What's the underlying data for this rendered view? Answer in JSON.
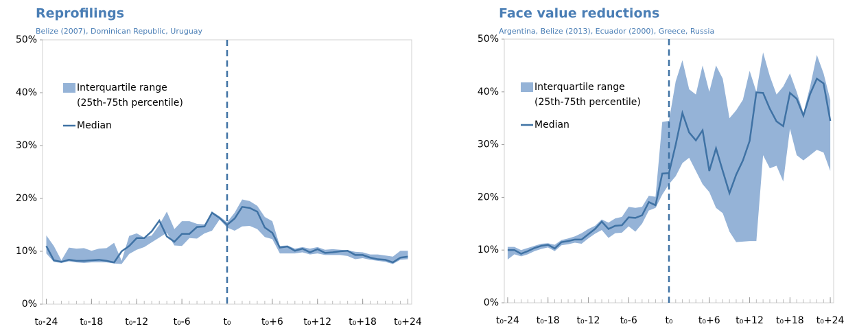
{
  "chart_data": [
    {
      "type": "line",
      "title": "Reprofilings",
      "subtitle": "Belize (2007),  Dominican Republic, Uruguay",
      "x": [
        -24,
        -23,
        -22,
        -21,
        -20,
        -19,
        -18,
        -17,
        -16,
        -15,
        -14,
        -13,
        -12,
        -11,
        -10,
        -9,
        -8,
        -7,
        -6,
        -5,
        -4,
        -3,
        -2,
        -1,
        0,
        1,
        2,
        3,
        4,
        5,
        6,
        7,
        8,
        9,
        10,
        11,
        12,
        13,
        14,
        15,
        16,
        17,
        18,
        19,
        20,
        21,
        22,
        23,
        24
      ],
      "xlim": [
        -24.5,
        24.5
      ],
      "xticks": [
        {
          "value": -24,
          "label": "t₀-24"
        },
        {
          "value": -18,
          "label": "t₀-18"
        },
        {
          "value": -12,
          "label": "t₀-12"
        },
        {
          "value": -6,
          "label": "t₀-6"
        },
        {
          "value": 0,
          "label": "t₀"
        },
        {
          "value": 6,
          "label": "t₀+6"
        },
        {
          "value": 12,
          "label": "t₀+12"
        },
        {
          "value": 18,
          "label": "t₀+18"
        },
        {
          "value": 24,
          "label": "t₀+24"
        }
      ],
      "ylim": [
        0,
        50
      ],
      "yticks": [
        {
          "value": 0,
          "label": "0%"
        },
        {
          "value": 10,
          "label": "10%"
        },
        {
          "value": 20,
          "label": "20%"
        },
        {
          "value": 30,
          "label": "30%"
        },
        {
          "value": 40,
          "label": "40%"
        },
        {
          "value": 50,
          "label": "50%"
        }
      ],
      "marker_x": 0,
      "series": [
        {
          "name": "Interquartile range",
          "note": "(25th-75th percentile)",
          "color": "#95b3d7",
          "upper": [
            13,
            11,
            8.3,
            10.7,
            10.5,
            10.6,
            10.1,
            10.5,
            10.6,
            11.6,
            8.2,
            12.9,
            13.4,
            12.6,
            13,
            15,
            17.5,
            14.2,
            15.7,
            15.7,
            15.2,
            15.1,
            17.5,
            16.6,
            15.5,
            17.3,
            19.8,
            19.5,
            18.6,
            16.5,
            15.7,
            11,
            11.1,
            10.5,
            10.8,
            10.5,
            10.8,
            10.3,
            10.4,
            10.3,
            10.2,
            9.9,
            9.8,
            9.4,
            9.4,
            9.2,
            9,
            10.1,
            10.1
          ],
          "lower": [
            9.6,
            8,
            7.8,
            8.1,
            7.9,
            7.8,
            7.9,
            7.9,
            7.9,
            7.7,
            7.6,
            9.5,
            10.3,
            10.8,
            11.7,
            12.6,
            13.5,
            11.1,
            11,
            12.5,
            12.4,
            13.4,
            13.9,
            16,
            14.5,
            13.9,
            14.7,
            14.8,
            14.2,
            12.7,
            12.3,
            9.6,
            9.6,
            9.6,
            9.8,
            9.4,
            9.6,
            9.3,
            9.3,
            9.3,
            9.1,
            8.5,
            8.7,
            8.4,
            8.2,
            8,
            7.6,
            8.4,
            8.5
          ]
        },
        {
          "name": "Median",
          "color": "#3f72a4",
          "values": [
            11,
            8.3,
            8,
            8.4,
            8.2,
            8.2,
            8.3,
            8.4,
            8.2,
            7.9,
            10,
            11,
            12.5,
            12.5,
            13.8,
            15.8,
            12.8,
            11.8,
            13.3,
            13.3,
            14.6,
            14.7,
            17.3,
            16.3,
            15,
            16.2,
            18.4,
            18.2,
            17.5,
            14.5,
            13.5,
            10.7,
            10.9,
            10.1,
            10.5,
            9.8,
            10.4,
            9.7,
            9.8,
            10,
            10.1,
            9.3,
            9.3,
            8.8,
            8.5,
            8.4,
            7.9,
            8.8,
            9
          ]
        }
      ]
    },
    {
      "type": "line",
      "title": "Face value reductions",
      "subtitle": "Argentina, Belize (2013), Ecuador (2000), Greece, Russia",
      "x": [
        -24,
        -23,
        -22,
        -21,
        -20,
        -19,
        -18,
        -17,
        -16,
        -15,
        -14,
        -13,
        -12,
        -11,
        -10,
        -9,
        -8,
        -7,
        -6,
        -5,
        -4,
        -3,
        -2,
        -1,
        0,
        1,
        2,
        3,
        4,
        5,
        6,
        7,
        8,
        9,
        10,
        11,
        12,
        13,
        14,
        15,
        16,
        17,
        18,
        19,
        20,
        21,
        22,
        23,
        24
      ],
      "xlim": [
        -24.5,
        24.5
      ],
      "xticks": [
        {
          "value": -24,
          "label": "t₀-24"
        },
        {
          "value": -18,
          "label": "t₀-18"
        },
        {
          "value": -12,
          "label": "t₀-12"
        },
        {
          "value": -6,
          "label": "t₀-6"
        },
        {
          "value": 0,
          "label": "t₀"
        },
        {
          "value": 6,
          "label": "t₀+6"
        },
        {
          "value": 12,
          "label": "t₀+12"
        },
        {
          "value": 18,
          "label": "t₀+18"
        },
        {
          "value": 24,
          "label": "t₀+24"
        }
      ],
      "ylim": [
        0,
        50
      ],
      "yticks": [
        {
          "value": 0,
          "label": "0%"
        },
        {
          "value": 10,
          "label": "10%"
        },
        {
          "value": 20,
          "label": "20%"
        },
        {
          "value": 30,
          "label": "30%"
        },
        {
          "value": 40,
          "label": "40%"
        },
        {
          "value": 50,
          "label": "50%"
        }
      ],
      "marker_x": 0,
      "series": [
        {
          "name": "Interquartile range",
          "note": "(25th-75th percentile)",
          "color": "#95b3d7",
          "upper": [
            10.6,
            10.6,
            10,
            10.4,
            10.8,
            11.2,
            11.3,
            11,
            11.9,
            12.2,
            12.6,
            13.2,
            14,
            14.6,
            15.8,
            15.2,
            16,
            16.3,
            18.2,
            18,
            18.2,
            20.3,
            20.1,
            34.3,
            34.5,
            42,
            46,
            40.5,
            39.5,
            45,
            40,
            45,
            42.5,
            35,
            36.5,
            38.5,
            44,
            40,
            47.5,
            43,
            39.5,
            41,
            43.5,
            40,
            36,
            41,
            47,
            43.5,
            38.5
          ],
          "lower": [
            8.2,
            9.2,
            8.8,
            9.2,
            9.8,
            10.2,
            10.5,
            9.8,
            10.9,
            11.1,
            11.4,
            11.2,
            12.2,
            13.1,
            13.8,
            12.3,
            13.2,
            13.3,
            14.5,
            13.5,
            15,
            17.5,
            18,
            20.5,
            22.5,
            24,
            26.5,
            27.5,
            25,
            22.5,
            21,
            18,
            17,
            13.5,
            11.5,
            11.6,
            11.7,
            11.7,
            28,
            25.5,
            26,
            23,
            33,
            28,
            27,
            28,
            29,
            28.5,
            25
          ]
        },
        {
          "name": "Median",
          "color": "#3f72a4",
          "values": [
            10,
            10,
            9.3,
            9.8,
            10.4,
            10.8,
            11,
            10.3,
            11.5,
            11.7,
            12,
            12,
            13,
            14,
            15.4,
            14,
            14.6,
            14.7,
            16.2,
            16.1,
            16.6,
            19.1,
            18.5,
            24.5,
            24.6,
            30,
            36,
            32.3,
            30.8,
            32.7,
            25,
            29.3,
            25,
            20.8,
            24.3,
            27,
            30.7,
            39.9,
            39.8,
            36.8,
            34.4,
            33.5,
            39.8,
            38.7,
            35.5,
            39.6,
            42.5,
            41.6,
            34.5
          ]
        }
      ]
    }
  ]
}
